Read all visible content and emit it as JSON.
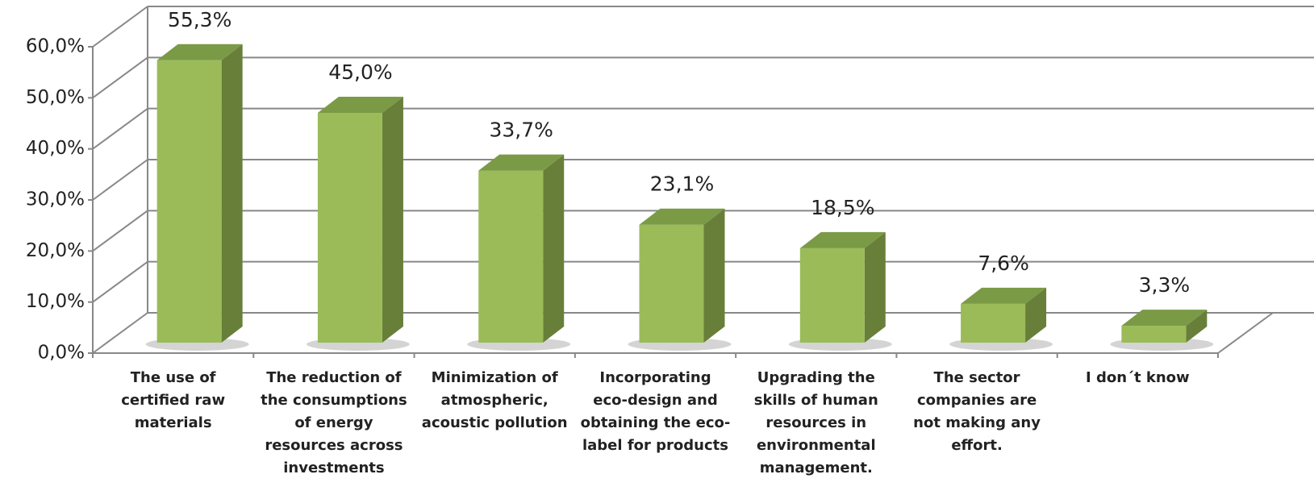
{
  "chart_data": {
    "type": "bar3d",
    "categories": [
      "The use of certified raw materials",
      "The reduction of the consumptions of energy resources across investments",
      "Minimization of atmospheric, acoustic pollution",
      "Incorporating eco-design and obtaining the eco-label for products",
      "Upgrading the skills of human resources in environmental management.",
      "The sector companies are not making any effort.",
      "I don´t know"
    ],
    "values": [
      55.3,
      45.0,
      33.7,
      23.1,
      18.5,
      7.6,
      3.3
    ],
    "value_labels": [
      "55,3%",
      "45,0%",
      "33,7%",
      "23,1%",
      "18,5%",
      "7,6%",
      "3,3%"
    ],
    "color": "#9bbb59",
    "ylim": [
      0,
      60
    ],
    "yticks": [
      {
        "value": 0,
        "label": "0,0%"
      },
      {
        "value": 10,
        "label": "10,0%"
      },
      {
        "value": 20,
        "label": "20,0%"
      },
      {
        "value": 30,
        "label": "30,0%"
      },
      {
        "value": 40,
        "label": "40,0%"
      },
      {
        "value": 50,
        "label": "50,0%"
      },
      {
        "value": 60,
        "label": "60,0%"
      }
    ],
    "grid": true
  }
}
